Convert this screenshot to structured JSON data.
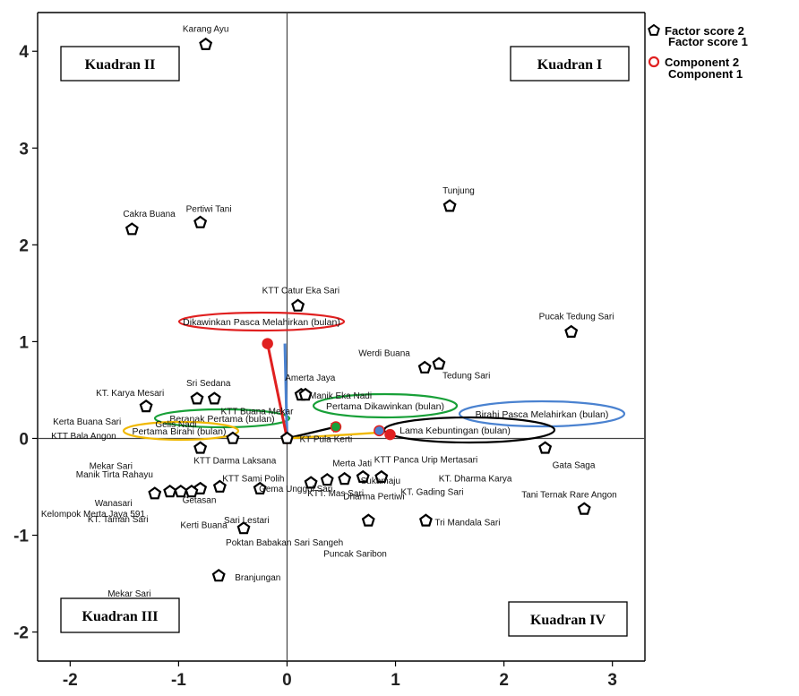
{
  "chart_data": {
    "type": "scatter",
    "title": "",
    "xlabel": "",
    "ylabel": "",
    "xlim": [
      -2.3,
      3.3
    ],
    "ylim": [
      -2.3,
      4.4
    ],
    "x_ticks": [
      -2,
      -1,
      0,
      1,
      2,
      3
    ],
    "y_ticks": [
      -2,
      -1,
      0,
      1,
      2,
      3,
      4
    ],
    "quadrant_labels": [
      "Kuadran II",
      "Kuadran I",
      "Kuadran III",
      "Kuadran IV"
    ],
    "legend": [
      {
        "name": "Factor score  2",
        "marker": "pentagon",
        "color": "#000000"
      },
      {
        "name": "Factor score  1",
        "marker": "",
        "color": "#000000"
      },
      {
        "name": "Component 2",
        "marker": "circle",
        "color": "#e02020"
      },
      {
        "name": "Component 1",
        "marker": "",
        "color": "#e02020"
      }
    ],
    "factor_scores": [
      {
        "label": "Karang Ayu",
        "x": -0.75,
        "y": 4.07
      },
      {
        "label": "Cakra Buana",
        "x": -1.43,
        "y": 2.16
      },
      {
        "label": "Pertiwi Tani",
        "x": -0.8,
        "y": 2.23
      },
      {
        "label": "Tunjung",
        "x": 1.5,
        "y": 2.4
      },
      {
        "label": "KTT Catur Eka Sari",
        "x": 0.1,
        "y": 1.37
      },
      {
        "label": "Pucak Tedung Sari",
        "x": 2.62,
        "y": 1.1
      },
      {
        "label": "Werdi Buana",
        "x": 1.27,
        "y": 0.73
      },
      {
        "label": "Tedung Sari",
        "x": 1.4,
        "y": 0.77
      },
      {
        "label": "Amerta Jaya",
        "x": 0.13,
        "y": 0.45
      },
      {
        "label": "Manik Eka Nadi",
        "x": 0.17,
        "y": 0.45
      },
      {
        "label": "Sri Sedana",
        "x": -0.83,
        "y": 0.41
      },
      {
        "label": "Gelis Nadi",
        "x": -0.67,
        "y": 0.41
      },
      {
        "label": "KT. Karya Mesari",
        "x": -1.3,
        "y": 0.33
      },
      {
        "label": "Kerta Buana Sari",
        "x": -1.3,
        "y": 0.33
      },
      {
        "label": "KTT Bala Angon",
        "x": -1.3,
        "y": 0.33
      },
      {
        "label": "KTT Buana Mekar",
        "x": 0.0,
        "y": 0.0
      },
      {
        "label": "KT Pula Kerti",
        "x": 0.0,
        "y": 0.0
      },
      {
        "label": "Mekar Sari",
        "x": -0.8,
        "y": -0.1
      },
      {
        "label": "KTT Darma Laksana",
        "x": -0.25,
        "y": -0.52
      },
      {
        "label": "KTT Sami Polih",
        "x": -0.25,
        "y": -0.52
      },
      {
        "label": "Gata Saga",
        "x": 2.38,
        "y": -0.1
      },
      {
        "label": "Merta Jati",
        "x": 0.7,
        "y": -0.4
      },
      {
        "label": "KTT Panca Urip Mertasari",
        "x": 0.87,
        "y": -0.4
      },
      {
        "label": "KT. Dharma Karya",
        "x": 0.87,
        "y": -0.4
      },
      {
        "label": "Sukamaju",
        "x": 0.53,
        "y": -0.42
      },
      {
        "label": "Manik  Tirta Rahayu",
        "x": -1.22,
        "y": -0.57
      },
      {
        "label": "Wanasari",
        "x": -1.08,
        "y": -0.55
      },
      {
        "label": "Kelompok Merta Jaya 591",
        "x": -0.98,
        "y": -0.55
      },
      {
        "label": "Getasan",
        "x": -0.8,
        "y": -0.52
      },
      {
        "label": "Kerti Buana",
        "x": -0.62,
        "y": -0.5
      },
      {
        "label": "Gema Unggul Sari",
        "x": 0.22,
        "y": -0.46
      },
      {
        "label": "KT. Gading Sari",
        "x": 1.28,
        "y": -0.85
      },
      {
        "label": "Tani Ternak Rare Angon",
        "x": 2.74,
        "y": -0.73
      },
      {
        "label": "Dharma Pertiwi",
        "x": 0.75,
        "y": -0.85
      },
      {
        "label": "Tri Mandala Sari",
        "x": 1.28,
        "y": -0.85
      },
      {
        "label": "KT. Taman Sari",
        "x": -0.88,
        "y": -0.55
      },
      {
        "label": "Sari Lestari",
        "x": -0.4,
        "y": -0.93
      },
      {
        "label": "KTT. Mas Sari",
        "x": 0.37,
        "y": -0.43
      },
      {
        "label": "Poktan Babakan Sari Sangeh",
        "x": -0.4,
        "y": -0.93
      },
      {
        "label": "Puncak Saribon",
        "x": 0.75,
        "y": -0.85
      },
      {
        "label": "Mekar Sari",
        "x": -0.63,
        "y": -1.42
      },
      {
        "label": "Branjungan",
        "x": -0.63,
        "y": -1.42
      }
    ],
    "component_loadings": [
      {
        "label": "Dikawinkan Pasca Melahirkan (bulan)",
        "x": -0.18,
        "y": 0.98,
        "ellipse_color": "#e02020"
      },
      {
        "label": "Beranak Pertama (bulan)",
        "x": 0.0,
        "y": 0.0,
        "ellipse_color": "#18a038"
      },
      {
        "label": "Pertama Dikawinkan (bulan)",
        "x": 0.45,
        "y": 0.12,
        "ellipse_color": "#18a038"
      },
      {
        "label": "Pertama Birahi (bulan)",
        "x": 0.0,
        "y": 0.0,
        "ellipse_color": "#f0b800"
      },
      {
        "label": "Birahi Pasca Melahirkan (bulan)",
        "x": 0.85,
        "y": 0.08,
        "ellipse_color": "#4a82d0"
      },
      {
        "label": "Lama Kebuntingan (bulan)",
        "x": 0.95,
        "y": 0.04,
        "ellipse_color": "#000000"
      }
    ],
    "grid": false,
    "legend_position": "right"
  }
}
